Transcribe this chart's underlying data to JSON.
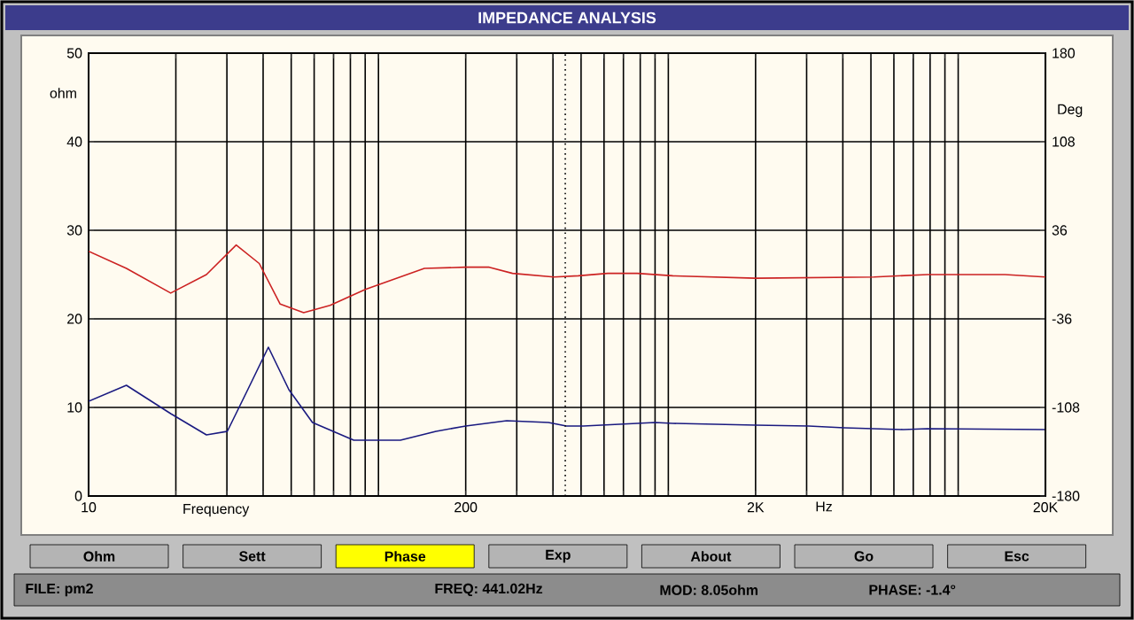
{
  "chart_data": {
    "type": "line",
    "title": "IMPEDANCE ANALYSIS",
    "xlabel": "Frequency",
    "ylabel": "ohm",
    "y2label": "Deg",
    "log": "x",
    "grid": true,
    "xlim": [
      10,
      20000
    ],
    "ylim": [
      0,
      50
    ],
    "y2lim": [
      -180,
      180
    ],
    "xticks": [
      10,
      {
        "value": 20,
        "label": null
      },
      {
        "value": 30,
        "label": null
      },
      {
        "value": 40,
        "label": null
      },
      {
        "value": 50,
        "label": null
      },
      {
        "value": 60,
        "label": null
      },
      {
        "value": 70,
        "label": null
      },
      {
        "value": 80,
        "label": null
      },
      {
        "value": 90,
        "label": null
      },
      {
        "value": 100,
        "label": null
      },
      200,
      {
        "value": 300,
        "label": null
      },
      {
        "value": 400,
        "label": null
      },
      {
        "value": 500,
        "label": null
      },
      {
        "value": 600,
        "label": null
      },
      {
        "value": 700,
        "label": null
      },
      {
        "value": 800,
        "label": null
      },
      {
        "value": 900,
        "label": null
      },
      {
        "value": 1000,
        "label": null
      },
      {
        "value": 2000,
        "label": "2K"
      },
      {
        "value": 3000,
        "label": null
      },
      {
        "value": 4000,
        "label": null
      },
      {
        "value": 5000,
        "label": null
      },
      {
        "value": 6000,
        "label": null
      },
      {
        "value": 7000,
        "label": null
      },
      {
        "value": 8000,
        "label": null
      },
      {
        "value": 9000,
        "label": null
      },
      {
        "value": 10000,
        "label": null
      },
      {
        "value": 20000,
        "label": "20K"
      }
    ],
    "yticks": [
      0,
      10,
      20,
      30,
      40,
      50
    ],
    "y2ticks": [
      -180,
      -108,
      -36,
      36,
      108,
      180
    ],
    "ref_lines": [
      {
        "axis": "x",
        "value": 441.02,
        "line_style": "dotted",
        "color": "#000000"
      }
    ],
    "series": [
      {
        "color": "#1a1a80",
        "x": [
          10,
          13.5,
          19.2,
          25.5,
          30.1,
          35.4,
          41.7,
          49.1,
          59.2,
          82.2,
          119,
          158,
          200,
          277,
          386,
          445,
          509,
          900,
          1036,
          2000,
          3050,
          4040,
          6470,
          7830,
          20000
        ],
        "values": [
          10.7,
          12.5,
          9.3,
          6.9,
          7.3,
          12,
          16.8,
          12,
          8.3,
          6.3,
          6.3,
          7.3,
          7.9,
          8.5,
          8.3,
          7.9,
          7.9,
          8.3,
          8.2,
          8.0,
          7.9,
          7.7,
          7.5,
          7.6,
          7.5
        ]
      },
      {
        "color": "#cc2222",
        "axis": "y2",
        "x": [
          10,
          13.5,
          19.2,
          25.5,
          32.3,
          38.8,
          45.8,
          55.2,
          68.1,
          90.1,
          144,
          200,
          241,
          290,
          403,
          489,
          618,
          782,
          1036,
          2000,
          5120,
          7830,
          14500,
          20000
        ],
        "values": [
          19,
          5,
          -15,
          0,
          24,
          9,
          -24,
          -31,
          -25,
          -12,
          5,
          6,
          6,
          1,
          -2,
          -1,
          1,
          1,
          -1,
          -3,
          -2,
          0,
          0,
          -2
        ]
      }
    ],
    "annotations": [
      "Ohm",
      "Sett",
      "Phase",
      "Exp",
      "About",
      "Go",
      "Esc",
      "FILE: pm2",
      "FREQ: 441.02Hz",
      "MOD: 8.05ohm",
      "PHASE: -1.4°",
      "Hz"
    ]
  }
}
